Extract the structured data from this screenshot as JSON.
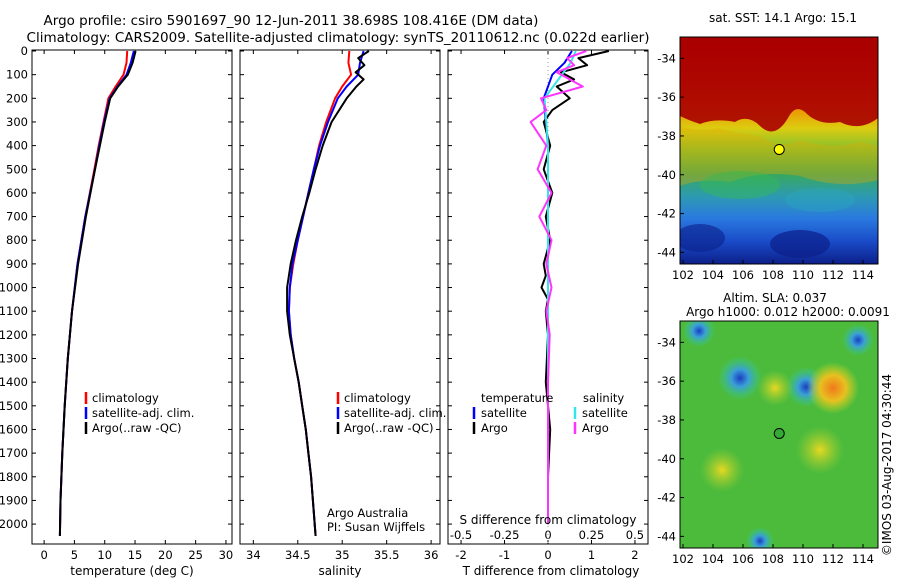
{
  "title_line1": "Argo profile: csiro 5901697_90 12-Jun-2011 38.698S 108.416E (DM data)",
  "title_line2": "Climatology: CARS2009. Satellite-adjusted climatology: synTS_20110612.nc (0.022d earlier)",
  "map_sst_title": "sat. SST: 14.1 Argo: 15.1",
  "map_sla_title1": "Altim. SLA: 0.037",
  "map_sla_title2": "Argo h1000: 0.012 h2000: 0.0091",
  "credit": "©IMOS 03-Aug-2017 04:30:44",
  "text_labels": {
    "agency": "Argo Australia",
    "pi": "PI: Susan Wijffels",
    "s_diff_label": "S difference from climatology"
  },
  "colors": {
    "climatology": "#ff0000",
    "satellite": "#0000ff",
    "argo": "#000000",
    "argo_salinity": "#ff33ff",
    "satellite_salinity": "#33e6e6"
  },
  "chart_data": [
    {
      "type": "line",
      "xlabel": "temperature (deg C)",
      "ylabel": "",
      "xlim": [
        -2,
        31
      ],
      "ylim": [
        2080,
        0
      ],
      "xticks": [
        0,
        5,
        10,
        15,
        20,
        25,
        30
      ],
      "yticks": [
        0,
        100,
        200,
        300,
        400,
        500,
        600,
        700,
        800,
        900,
        1000,
        1100,
        1200,
        1300,
        1400,
        1500,
        1600,
        1700,
        1800,
        1900,
        2000
      ],
      "legend": {
        "position": "lower-right",
        "items": [
          "climatology",
          "satellite-adj. clim.",
          "Argo(..raw -QC)"
        ]
      },
      "series": [
        {
          "name": "climatology",
          "color_key": "climatology",
          "depth": [
            0,
            50,
            100,
            150,
            200,
            300,
            400,
            500,
            700,
            900,
            1100,
            1300,
            1500,
            1700,
            1900,
            2050
          ],
          "values": [
            13.7,
            13.6,
            13.1,
            11.8,
            10.6,
            9.8,
            9.0,
            8.3,
            6.8,
            5.5,
            4.6,
            3.9,
            3.4,
            3.0,
            2.7,
            2.6
          ]
        },
        {
          "name": "satellite-adj. clim.",
          "color_key": "satellite",
          "depth": [
            0,
            50,
            100,
            150,
            200,
            300,
            400,
            500,
            700,
            900,
            1100,
            1300,
            1500,
            1700,
            1900,
            2050
          ],
          "values": [
            14.8,
            14.3,
            13.6,
            12.1,
            10.8,
            9.9,
            9.1,
            8.4,
            6.8,
            5.5,
            4.6,
            3.9,
            3.4,
            3.0,
            2.7,
            2.6
          ]
        },
        {
          "name": "Argo(..raw -QC)",
          "color_key": "argo",
          "depth": [
            0,
            50,
            100,
            150,
            200,
            300,
            400,
            500,
            700,
            900,
            1100,
            1300,
            1500,
            1700,
            1900,
            2050
          ],
          "values": [
            15.1,
            14.6,
            13.8,
            12.2,
            10.9,
            10.0,
            9.2,
            8.4,
            6.9,
            5.6,
            4.6,
            3.9,
            3.4,
            3.0,
            2.7,
            2.6
          ]
        }
      ]
    },
    {
      "type": "line",
      "xlabel": "salinity",
      "ylabel": "",
      "xlim": [
        33.85,
        36.1
      ],
      "ylim": [
        2080,
        0
      ],
      "xticks": [
        34,
        34.5,
        35,
        35.5,
        36
      ],
      "legend": {
        "position": "lower-right",
        "items": [
          "climatology",
          "satellite-adj. clim.",
          "Argo(..raw -QC)"
        ]
      },
      "series": [
        {
          "name": "climatology",
          "color_key": "climatology",
          "depth": [
            0,
            50,
            100,
            150,
            200,
            300,
            400,
            500,
            600,
            700,
            800,
            900,
            1000,
            1100,
            1200,
            1300,
            1400,
            1500,
            1600,
            1700,
            1800,
            1900,
            2050
          ],
          "values": [
            35.08,
            35.07,
            35.1,
            35.0,
            34.92,
            34.82,
            34.74,
            34.68,
            34.62,
            34.56,
            34.5,
            34.45,
            34.41,
            34.4,
            34.42,
            34.46,
            34.51,
            34.55,
            34.59,
            34.62,
            34.65,
            34.67,
            34.7
          ]
        },
        {
          "name": "satellite-adj. clim.",
          "color_key": "satellite",
          "depth": [
            0,
            50,
            100,
            150,
            200,
            300,
            400,
            500,
            600,
            700,
            800,
            900,
            1000,
            1100,
            1200,
            1300,
            1400,
            1500,
            1600,
            1700,
            1800,
            1900,
            2050
          ],
          "values": [
            35.24,
            35.2,
            35.18,
            35.05,
            34.95,
            34.84,
            34.75,
            34.68,
            34.62,
            34.56,
            34.5,
            34.44,
            34.41,
            34.4,
            34.42,
            34.46,
            34.51,
            34.55,
            34.59,
            34.62,
            34.65,
            34.67,
            34.7
          ]
        },
        {
          "name": "Argo(..raw -QC)",
          "color_key": "argo",
          "depth": [
            0,
            30,
            60,
            90,
            120,
            150,
            200,
            300,
            400,
            500,
            600,
            700,
            800,
            900,
            1000,
            1100,
            1200,
            1300,
            1400,
            1500,
            1600,
            1700,
            1800,
            1900,
            2050
          ],
          "values": [
            35.3,
            35.18,
            35.25,
            35.15,
            35.24,
            35.16,
            35.05,
            34.88,
            34.78,
            34.7,
            34.63,
            34.55,
            34.48,
            34.42,
            34.38,
            34.38,
            34.41,
            34.46,
            34.51,
            34.55,
            34.59,
            34.62,
            34.65,
            34.67,
            34.7
          ]
        }
      ]
    },
    {
      "type": "line",
      "xlabel": "T difference from climatology",
      "ylabel": "",
      "xlim": [
        -2.3,
        2.3
      ],
      "ylim": [
        2080,
        0
      ],
      "xticks": [
        -2,
        -1,
        0,
        1,
        2
      ],
      "secondary_xticks": [
        -0.5,
        -0.25,
        0,
        0.25,
        0.5
      ],
      "legend": {
        "position": "lower",
        "items": [
          "temperature",
          "satellite",
          "Argo",
          "salinity",
          "satellite",
          "Argo"
        ]
      },
      "series": [
        {
          "name": "satellite",
          "variable": "temperature",
          "color_key": "satellite",
          "depth": [
            0,
            50,
            100,
            200,
            400,
            600,
            1000,
            1500,
            2000
          ],
          "values": [
            0.55,
            0.38,
            0.1,
            -0.1,
            0.0,
            0.0,
            0.0,
            0.0,
            0.0
          ]
        },
        {
          "name": "Argo",
          "variable": "temperature",
          "color_key": "argo",
          "depth": [
            0,
            30,
            60,
            90,
            120,
            150,
            200,
            250,
            300,
            400,
            500,
            600,
            700,
            800,
            900,
            950,
            1000,
            1050,
            1100,
            1200,
            1400,
            1600,
            1800,
            2000
          ],
          "values": [
            1.4,
            0.7,
            0.9,
            0.3,
            0.6,
            0.2,
            0.5,
            0.1,
            -0.1,
            0.05,
            -0.1,
            0.1,
            -0.05,
            0.05,
            -0.1,
            -0.05,
            -0.15,
            0.0,
            -0.05,
            0.0,
            -0.05,
            0.05,
            0.0,
            0.0
          ]
        },
        {
          "name": "satellite",
          "variable": "salinity",
          "color_key": "satellite_salinity",
          "depth": [
            0,
            50,
            100,
            200,
            300,
            400,
            600,
            800,
            1000,
            1500,
            2000
          ],
          "values": [
            0.16,
            0.13,
            0.08,
            -0.02,
            -0.01,
            0.0,
            0.0,
            0.0,
            0.0,
            0.0,
            0.0
          ]
        },
        {
          "name": "Argo",
          "variable": "salinity",
          "color_key": "argo_salinity",
          "depth": [
            0,
            30,
            60,
            90,
            150,
            200,
            250,
            300,
            400,
            500,
            600,
            700,
            800,
            900,
            1000,
            1100,
            1200,
            1400,
            1600,
            1800,
            2000
          ],
          "values": [
            0.22,
            0.11,
            0.15,
            0.05,
            0.2,
            -0.04,
            -0.01,
            -0.1,
            -0.01,
            -0.06,
            0.02,
            -0.05,
            0.02,
            -0.01,
            0.02,
            -0.01,
            0.01,
            0.0,
            0.0,
            0.0,
            0.0
          ]
        }
      ]
    },
    {
      "type": "heatmap",
      "title": "sat. SST: 14.1 Argo: 15.1",
      "xlim": [
        101.8,
        115
      ],
      "ylim": [
        -44.6,
        -32.9
      ],
      "xticks": [
        102,
        104,
        106,
        108,
        110,
        112,
        114
      ],
      "yticks": [
        -34,
        -36,
        -38,
        -40,
        -42,
        -44
      ],
      "marker": {
        "lon": 108.416,
        "lat": -38.698,
        "color": "#ffff00"
      }
    },
    {
      "type": "heatmap",
      "title": "Altim. SLA: 0.037",
      "xlim": [
        101.8,
        115
      ],
      "ylim": [
        -44.6,
        -32.9
      ],
      "xticks": [
        102,
        104,
        106,
        108,
        110,
        112,
        114
      ],
      "yticks": [
        -34,
        -36,
        -38,
        -40,
        -42,
        -44
      ],
      "marker": {
        "lon": 108.416,
        "lat": -38.698,
        "color": "#33aa33"
      }
    }
  ]
}
